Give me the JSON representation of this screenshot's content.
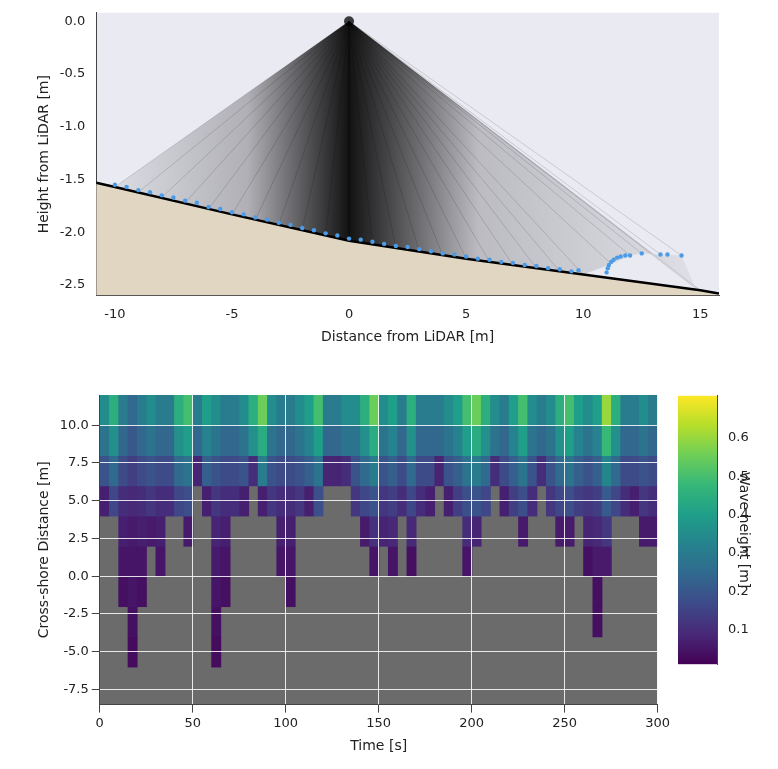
{
  "chart_data": [
    {
      "type": "scatter",
      "xlabel": "Distance from LiDAR [m]",
      "ylabel": "Height from LiDAR [m]",
      "xlim": [
        -10.8,
        15.8
      ],
      "ylim": [
        -2.6,
        0.08
      ],
      "xticks": [
        -10,
        -5,
        0,
        5,
        10,
        15
      ],
      "yticks": [
        {
          "value": 0,
          "label": "0.0"
        },
        -0.5,
        {
          "value": -1,
          "label": "-1.0"
        },
        -1.5,
        {
          "value": -2,
          "label": "-2.0"
        },
        -2.5
      ],
      "grid": false,
      "series": [
        {
          "type": "area",
          "color": "#e0d6c2",
          "x": [
            -10.8,
            -10,
            -5,
            0,
            5,
            10,
            15,
            15.8
          ],
          "values": [
            -1.53,
            -1.57,
            -1.83,
            -2.08,
            -2.25,
            -2.4,
            -2.55,
            -2.58
          ]
        },
        {
          "type": "rays",
          "color": "#000000",
          "marker": "circle",
          "origin": [
            0,
            0
          ],
          "x": [
            -10,
            -9,
            -8,
            -7,
            -6,
            -5,
            -4,
            -3,
            -2,
            -1,
            0,
            1,
            2,
            3,
            4,
            5,
            6,
            7,
            8,
            9,
            10,
            11.2,
            12,
            12.5,
            13.3,
            14.2,
            14.8,
            15
          ],
          "values": [
            -1.57,
            -1.62,
            -1.67,
            -1.72,
            -1.78,
            -1.83,
            -1.88,
            -1.93,
            -1.98,
            -2.03,
            -2.08,
            -2.11,
            -2.15,
            -2.18,
            -2.22,
            -2.25,
            -2.28,
            -2.31,
            -2.34,
            -2.37,
            -2.4,
            -2.3,
            -2.22,
            -2.2,
            -2.21,
            -2.22,
            -2.53,
            -2.55
          ]
        },
        {
          "type": "scatter",
          "color": "#4c9be8",
          "marker": "circle",
          "x": [
            -10,
            -9.5,
            -9,
            -8.5,
            -8,
            -7.5,
            -7,
            -6.5,
            -6,
            -5.5,
            -5,
            -4.5,
            -4,
            -3.5,
            -3,
            -2.5,
            -2,
            -1.5,
            -1,
            -0.5,
            0,
            0.5,
            1,
            1.5,
            2,
            2.5,
            3,
            3.5,
            4,
            4.5,
            5,
            5.5,
            6,
            6.5,
            7,
            7.5,
            8,
            8.5,
            9,
            9.5,
            9.8,
            11,
            11.05,
            11.1,
            11.2,
            11.3,
            11.45,
            11.6,
            11.8,
            12.0,
            12.5,
            13.3,
            13.6,
            14.2
          ],
          "values": [
            -1.55,
            -1.57,
            -1.6,
            -1.62,
            -1.65,
            -1.67,
            -1.7,
            -1.72,
            -1.76,
            -1.78,
            -1.81,
            -1.83,
            -1.86,
            -1.88,
            -1.91,
            -1.93,
            -1.96,
            -1.98,
            -2.01,
            -2.03,
            -2.06,
            -2.07,
            -2.09,
            -2.11,
            -2.13,
            -2.14,
            -2.16,
            -2.18,
            -2.2,
            -2.21,
            -2.23,
            -2.25,
            -2.26,
            -2.28,
            -2.29,
            -2.31,
            -2.32,
            -2.34,
            -2.35,
            -2.37,
            -2.36,
            -2.38,
            -2.34,
            -2.31,
            -2.28,
            -2.26,
            -2.24,
            -2.23,
            -2.22,
            -2.22,
            -2.2,
            -2.21,
            -2.21,
            -2.22
          ]
        }
      ]
    },
    {
      "type": "heatmap",
      "xlabel": "Time [s]",
      "ylabel": "Cross-shore Distance [m]",
      "xlim": [
        0,
        300
      ],
      "ylim": [
        -8.5,
        12
      ],
      "xticks": [
        0,
        50,
        100,
        150,
        200,
        250,
        300
      ],
      "yticks": [
        -7.5,
        {
          "value": -5,
          "label": "-5.0"
        },
        -2.5,
        {
          "value": 0,
          "label": "0.0"
        },
        2.5,
        {
          "value": 5,
          "label": "5.0"
        },
        7.5,
        {
          "value": 10,
          "label": "10.0"
        }
      ],
      "grid": true,
      "color": "#6b6b6b",
      "xbins": [
        0,
        5,
        10,
        15,
        20,
        25,
        30,
        35,
        40,
        45,
        50,
        55,
        60,
        65,
        70,
        75,
        80,
        85,
        90,
        95,
        100,
        105,
        110,
        115,
        120,
        125,
        130,
        135,
        140,
        145,
        150,
        155,
        160,
        165,
        170,
        175,
        180,
        185,
        190,
        195,
        200,
        205,
        210,
        215,
        220,
        225,
        230,
        235,
        240,
        245,
        250,
        255,
        260,
        265,
        270,
        275,
        280,
        285,
        290,
        295,
        300
      ],
      "ybins": [
        -6,
        -4,
        -2,
        0,
        2,
        4,
        6,
        8,
        10,
        12
      ],
      "cells": [
        [
          null,
          null,
          null,
          0.03,
          null,
          null,
          null,
          null,
          null,
          null,
          null,
          null,
          0.03,
          null,
          null,
          null,
          null,
          null,
          null,
          null,
          null,
          null,
          null,
          null,
          null,
          null,
          null,
          null,
          null,
          null,
          null,
          null,
          null,
          null,
          null,
          null,
          null,
          null,
          null,
          null,
          null,
          null,
          null,
          null,
          null,
          null,
          null,
          null,
          null,
          null,
          null,
          null,
          null,
          null,
          null,
          null,
          null,
          null,
          null,
          null
        ],
        [
          null,
          null,
          null,
          0.04,
          null,
          null,
          null,
          null,
          null,
          null,
          null,
          null,
          0.04,
          null,
          null,
          null,
          null,
          null,
          null,
          null,
          null,
          null,
          null,
          null,
          null,
          null,
          null,
          null,
          null,
          null,
          null,
          null,
          null,
          null,
          null,
          null,
          null,
          null,
          null,
          null,
          null,
          null,
          null,
          null,
          null,
          null,
          null,
          null,
          null,
          null,
          null,
          null,
          null,
          0.04,
          null,
          null,
          null,
          null,
          null,
          null
        ],
        [
          null,
          null,
          0.04,
          0.05,
          0.04,
          null,
          null,
          null,
          null,
          null,
          null,
          null,
          0.05,
          0.04,
          null,
          null,
          null,
          null,
          null,
          null,
          0.04,
          null,
          null,
          null,
          null,
          null,
          null,
          null,
          null,
          null,
          null,
          null,
          null,
          null,
          null,
          null,
          null,
          null,
          null,
          null,
          null,
          null,
          null,
          null,
          null,
          null,
          null,
          null,
          null,
          null,
          null,
          null,
          null,
          0.04,
          null,
          null,
          null,
          null,
          null,
          null
        ],
        [
          null,
          null,
          0.05,
          0.05,
          0.05,
          null,
          0.05,
          null,
          null,
          null,
          null,
          null,
          0.06,
          0.05,
          null,
          null,
          null,
          null,
          null,
          0.05,
          0.05,
          null,
          null,
          null,
          null,
          null,
          null,
          null,
          null,
          0.05,
          null,
          0.05,
          null,
          0.04,
          null,
          null,
          null,
          null,
          null,
          0.05,
          null,
          null,
          null,
          null,
          null,
          null,
          null,
          null,
          null,
          null,
          null,
          null,
          0.04,
          0.06,
          0.06,
          null,
          null,
          null,
          null,
          null
        ],
        [
          null,
          null,
          0.07,
          0.06,
          0.07,
          0.06,
          0.07,
          null,
          null,
          0.06,
          null,
          null,
          0.08,
          0.07,
          null,
          null,
          null,
          null,
          null,
          0.07,
          0.07,
          null,
          null,
          null,
          null,
          null,
          null,
          null,
          0.06,
          0.11,
          0.08,
          0.09,
          null,
          0.09,
          null,
          null,
          null,
          null,
          null,
          0.1,
          0.08,
          null,
          null,
          null,
          null,
          0.06,
          null,
          null,
          null,
          0.06,
          0.06,
          null,
          0.08,
          0.09,
          0.12,
          null,
          null,
          null,
          0.06,
          0.06
        ],
        [
          0.07,
          0.16,
          0.1,
          0.09,
          0.1,
          0.12,
          0.1,
          0.1,
          0.16,
          0.18,
          null,
          0.07,
          0.12,
          0.1,
          0.1,
          0.07,
          null,
          0.07,
          0.12,
          0.1,
          0.1,
          0.12,
          0.07,
          0.18,
          null,
          null,
          null,
          0.12,
          0.16,
          0.19,
          0.12,
          0.14,
          0.1,
          0.16,
          0.1,
          0.07,
          null,
          0.07,
          0.14,
          0.18,
          0.19,
          0.16,
          null,
          0.07,
          0.14,
          0.18,
          0.1,
          null,
          0.12,
          0.16,
          0.18,
          0.14,
          0.12,
          0.14,
          0.21,
          0.16,
          0.1,
          0.07,
          0.12,
          0.1
        ],
        [
          0.19,
          0.25,
          0.17,
          0.14,
          0.17,
          0.19,
          0.17,
          0.17,
          0.25,
          0.28,
          0.08,
          0.22,
          0.19,
          0.17,
          0.17,
          0.19,
          0.1,
          0.3,
          0.19,
          0.17,
          0.17,
          0.19,
          0.22,
          0.28,
          0.08,
          0.08,
          0.1,
          0.19,
          0.25,
          0.3,
          0.19,
          0.22,
          0.17,
          0.25,
          0.17,
          0.17,
          0.08,
          0.19,
          0.22,
          0.28,
          0.3,
          0.25,
          0.1,
          0.17,
          0.22,
          0.28,
          0.19,
          0.1,
          0.19,
          0.25,
          0.28,
          0.22,
          0.19,
          0.22,
          0.33,
          0.25,
          0.17,
          0.17,
          0.19,
          0.17
        ],
        [
          0.28,
          0.36,
          0.24,
          0.2,
          0.24,
          0.28,
          0.24,
          0.24,
          0.36,
          0.4,
          0.24,
          0.32,
          0.28,
          0.24,
          0.24,
          0.28,
          0.36,
          0.44,
          0.28,
          0.24,
          0.24,
          0.28,
          0.32,
          0.4,
          0.24,
          0.24,
          0.28,
          0.28,
          0.36,
          0.44,
          0.28,
          0.32,
          0.24,
          0.36,
          0.24,
          0.24,
          0.24,
          0.28,
          0.32,
          0.4,
          0.44,
          0.36,
          0.28,
          0.24,
          0.32,
          0.4,
          0.28,
          0.24,
          0.28,
          0.36,
          0.4,
          0.32,
          0.28,
          0.32,
          0.48,
          0.36,
          0.24,
          0.24,
          0.28,
          0.24
        ],
        [
          0.35,
          0.45,
          0.3,
          0.25,
          0.3,
          0.35,
          0.3,
          0.3,
          0.45,
          0.5,
          0.3,
          0.4,
          0.35,
          0.3,
          0.3,
          0.35,
          0.45,
          0.55,
          0.35,
          0.3,
          0.3,
          0.35,
          0.4,
          0.5,
          0.3,
          0.3,
          0.35,
          0.35,
          0.45,
          0.55,
          0.35,
          0.4,
          0.3,
          0.45,
          0.3,
          0.3,
          0.3,
          0.35,
          0.4,
          0.5,
          0.55,
          0.45,
          0.35,
          0.3,
          0.4,
          0.5,
          0.35,
          0.3,
          0.35,
          0.45,
          0.5,
          0.4,
          0.35,
          0.4,
          0.6,
          0.45,
          0.3,
          0.3,
          0.35,
          0.3
        ]
      ],
      "colorbar": {
        "label": "Wave height [m]",
        "range": [
          0.01,
          0.71
        ],
        "ticks": [
          0.1,
          0.2,
          0.3,
          0.4,
          0.5,
          0.6
        ]
      }
    }
  ]
}
